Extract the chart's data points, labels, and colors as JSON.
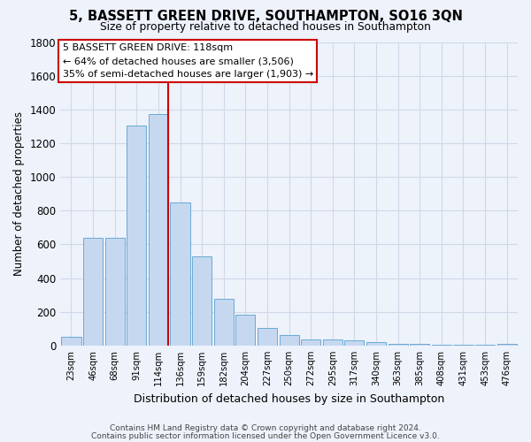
{
  "title": "5, BASSETT GREEN DRIVE, SOUTHAMPTON, SO16 3QN",
  "subtitle": "Size of property relative to detached houses in Southampton",
  "xlabel": "Distribution of detached houses by size in Southampton",
  "ylabel": "Number of detached properties",
  "footer_line1": "Contains HM Land Registry data © Crown copyright and database right 2024.",
  "footer_line2": "Contains public sector information licensed under the Open Government Licence v3.0.",
  "bin_labels": [
    "23sqm",
    "46sqm",
    "68sqm",
    "91sqm",
    "114sqm",
    "136sqm",
    "159sqm",
    "182sqm",
    "204sqm",
    "227sqm",
    "250sqm",
    "272sqm",
    "295sqm",
    "317sqm",
    "340sqm",
    "363sqm",
    "385sqm",
    "408sqm",
    "431sqm",
    "453sqm",
    "476sqm"
  ],
  "bar_values": [
    50,
    638,
    638,
    1305,
    1375,
    848,
    530,
    275,
    185,
    105,
    65,
    38,
    38,
    30,
    20,
    10,
    10,
    5,
    5,
    5,
    10
  ],
  "bar_color": "#c5d8f0",
  "bar_edge_color": "#6aaad4",
  "grid_color": "#d0d8e8",
  "bg_color": "#eef2fb",
  "red_line_bin": 4,
  "annotation_line1": "5 BASSETT GREEN DRIVE: 118sqm",
  "annotation_line2": "← 64% of detached houses are smaller (3,506)",
  "annotation_line3": "35% of semi-detached houses are larger (1,903) →",
  "annotation_box_color": "#ffffff",
  "annotation_border_color": "#cc0000",
  "ylim": [
    0,
    1800
  ],
  "yticks": [
    0,
    200,
    400,
    600,
    800,
    1000,
    1200,
    1400,
    1600,
    1800
  ]
}
